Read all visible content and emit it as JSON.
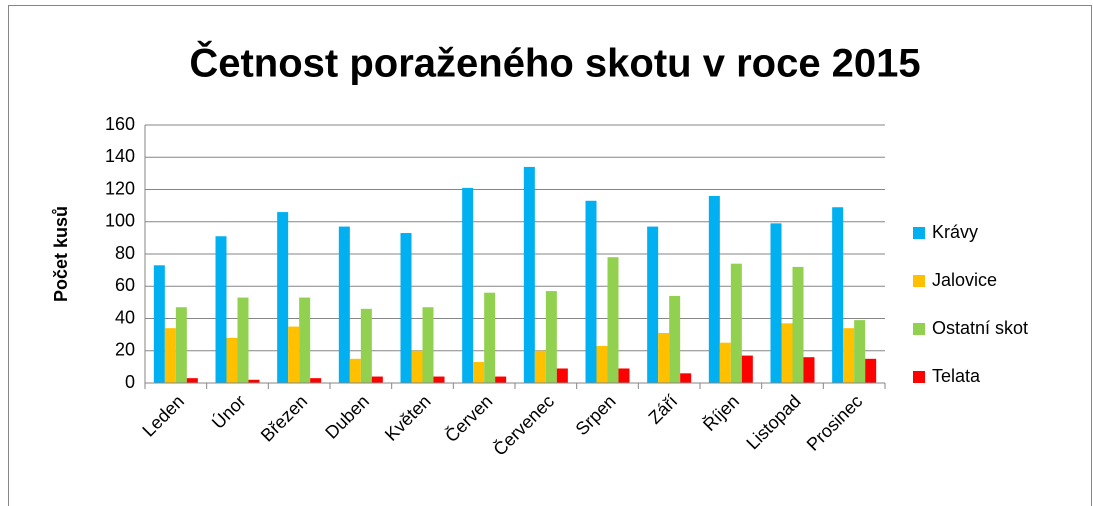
{
  "chart_data": {
    "type": "bar",
    "title": "Četnost poraženého skotu v roce 2015",
    "y_label": "Počet kusů",
    "categories": [
      "Leden",
      "Únor",
      "Březen",
      "Duben",
      "Květen",
      "Červen",
      "Červenec",
      "Srpen",
      "Září",
      "Říjen",
      "Listopad",
      "Prosinec"
    ],
    "series": [
      {
        "name": "Krávy",
        "color": "#00b0f0",
        "values": [
          73,
          91,
          106,
          97,
          93,
          121,
          134,
          113,
          97,
          116,
          99,
          109
        ]
      },
      {
        "name": "Jalovice",
        "color": "#ffc000",
        "values": [
          34,
          28,
          35,
          15,
          20,
          13,
          20,
          23,
          31,
          25,
          37,
          34
        ]
      },
      {
        "name": "Ostatní skot",
        "color": "#92d050",
        "values": [
          47,
          53,
          53,
          46,
          47,
          56,
          57,
          78,
          54,
          74,
          72,
          39
        ]
      },
      {
        "name": "Telata",
        "color": "#ff0000",
        "values": [
          3,
          2,
          3,
          4,
          4,
          4,
          9,
          9,
          6,
          17,
          16,
          15
        ]
      }
    ],
    "ylim": [
      0,
      160
    ],
    "yticks": [
      0,
      20,
      40,
      60,
      80,
      100,
      120,
      140,
      160
    ],
    "grid": true,
    "legend": "right"
  }
}
